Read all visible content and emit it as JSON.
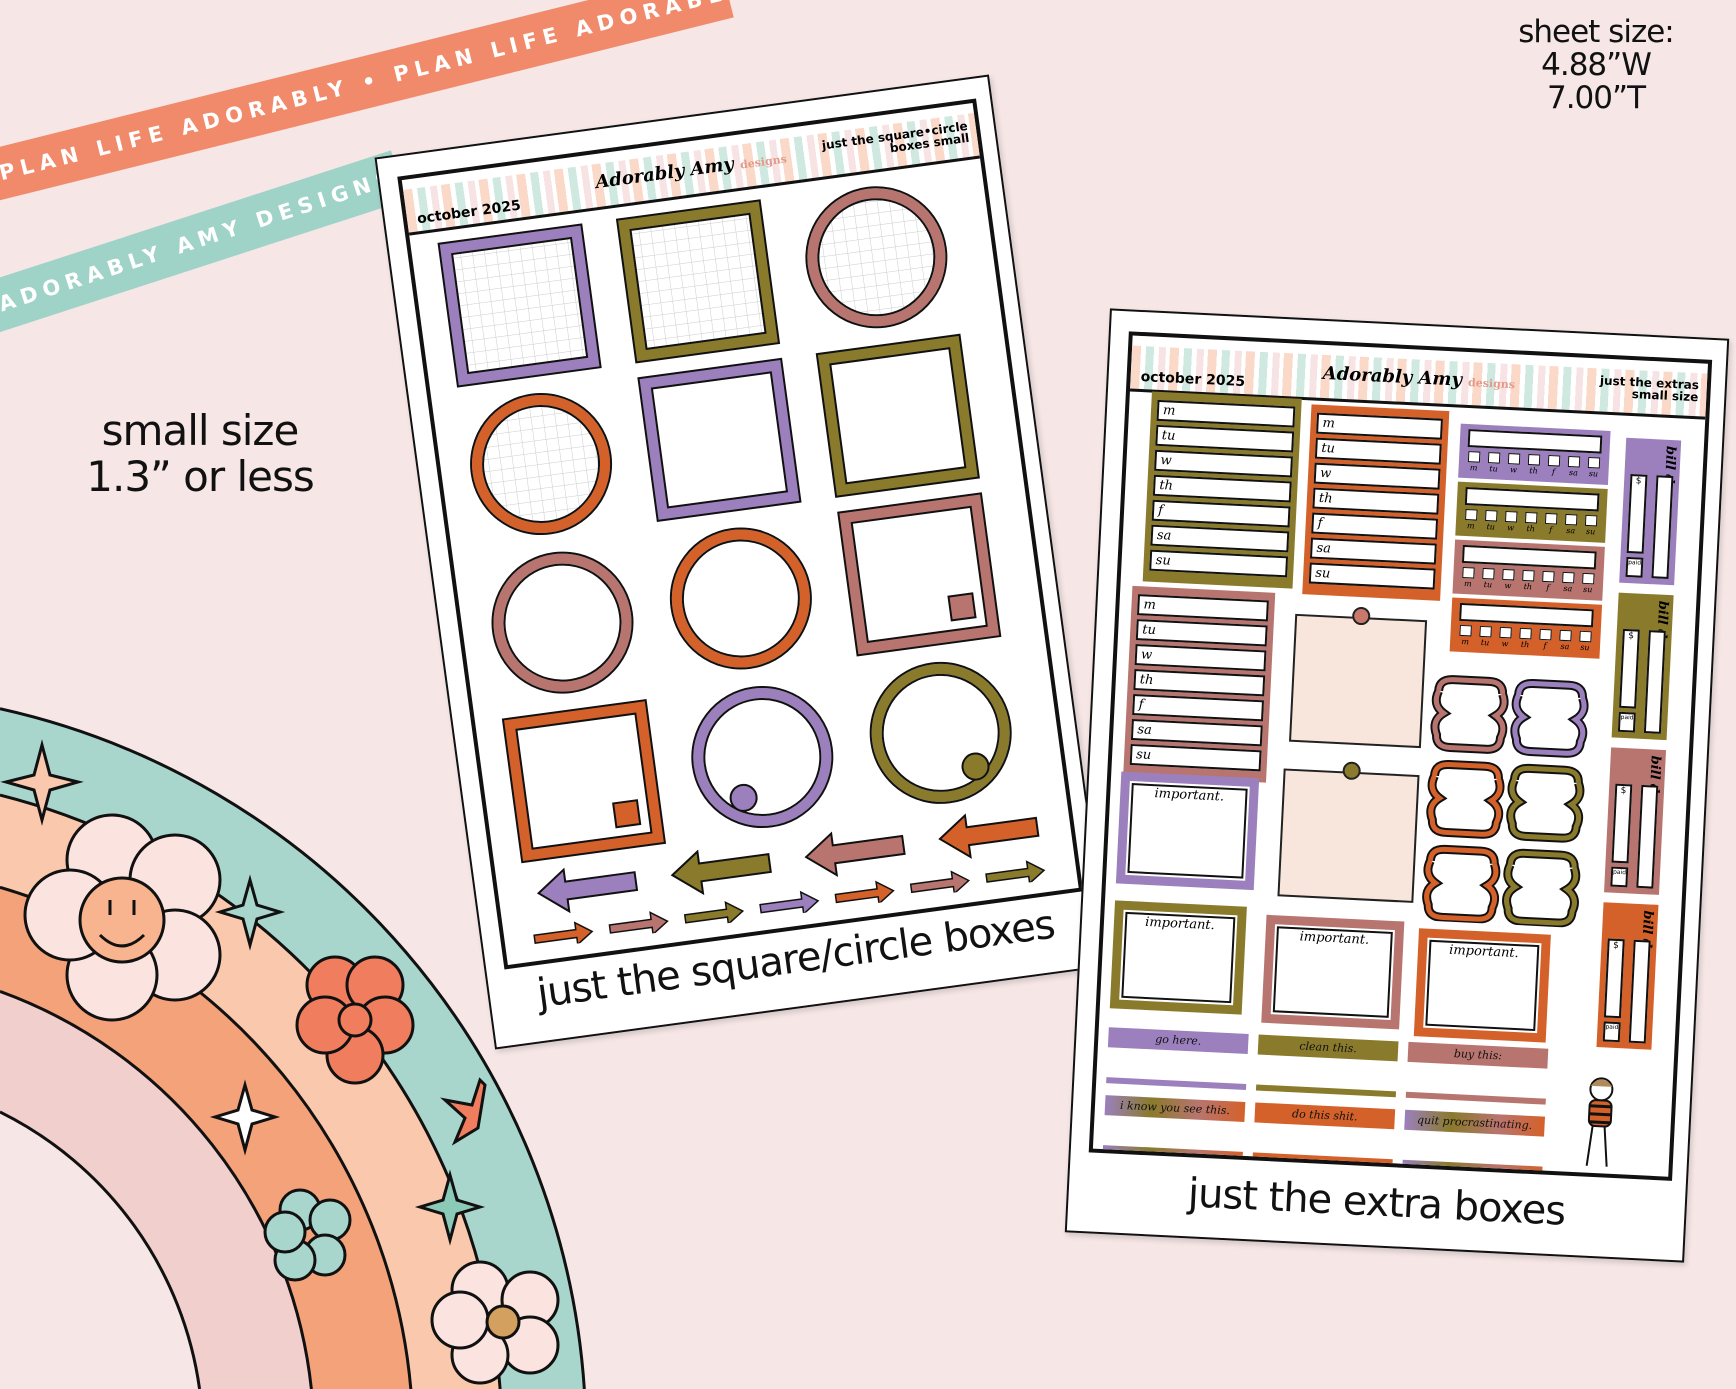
{
  "colors": {
    "background": "#f6e6e6",
    "purple": "#9b80bd",
    "olive": "#8a7a2c",
    "rose": "#b8756f",
    "orange": "#d4612a",
    "teal": "#9fd3c7",
    "peach": "#f7b48f",
    "coral": "#f08a6a"
  },
  "ribbons": {
    "top": "PLAN LIFE ADORABLY • PLAN LIFE ADORABLY • PLAN LIFE ADORABLY •",
    "bottom": "ADORABLY AMY DESIGNS• ADORABLY AMY DESIGNS• ADORABLY AMY DESIGNS•"
  },
  "size_note": {
    "line1": "small size",
    "line2": "1.3” or less"
  },
  "sheet_size": {
    "line1": "sheet size:",
    "line2": "4.88”W",
    "line3": "7.00”T"
  },
  "brand": {
    "logo": "Adorably Amy",
    "logo_sub": "designs"
  },
  "left_sheet": {
    "month": "october 2025",
    "kind_line1": "just the square•circle",
    "kind_line2": "boxes small",
    "caption": "just the square/circle boxes",
    "items": [
      {
        "shape": "square",
        "color": "purple",
        "grid": true
      },
      {
        "shape": "square",
        "color": "olive",
        "grid": true
      },
      {
        "shape": "circle",
        "color": "rose",
        "grid": true
      },
      {
        "shape": "circle",
        "color": "orange",
        "grid": true
      },
      {
        "shape": "square",
        "color": "purple"
      },
      {
        "shape": "square",
        "color": "olive"
      },
      {
        "shape": "circle",
        "color": "rose"
      },
      {
        "shape": "circle",
        "color": "orange"
      },
      {
        "shape": "square",
        "color": "rose",
        "marker": true
      },
      {
        "shape": "square",
        "color": "orange",
        "marker": true
      },
      {
        "shape": "circle",
        "color": "purple",
        "marker": true
      },
      {
        "shape": "circle",
        "color": "olive",
        "marker": true
      }
    ],
    "big_arrows": [
      "purple",
      "olive",
      "rose",
      "orange"
    ],
    "small_arrows": [
      "orange",
      "rose",
      "olive",
      "purple",
      "orange",
      "rose",
      "olive"
    ]
  },
  "right_sheet": {
    "month": "october 2025",
    "kind_line1": "just the extras",
    "kind_line2": "small size",
    "caption": "just the extra boxes",
    "weekdays": [
      "m",
      "tu",
      "w",
      "th",
      "f",
      "sa",
      "su"
    ],
    "week_boxes": [
      "olive",
      "orange",
      "rose"
    ],
    "trackers": [
      "purple",
      "olive",
      "rose",
      "orange"
    ],
    "bill": {
      "label": "bill due",
      "currency": "$",
      "paid": "paid",
      "colors": [
        "purple",
        "olive",
        "rose",
        "orange"
      ]
    },
    "important": {
      "label": "important.",
      "colors": [
        "purple",
        "olive",
        "rose",
        "orange"
      ]
    },
    "labels": [
      {
        "text": "go here.",
        "color": "purple"
      },
      {
        "text": "clean this.",
        "color": "olive"
      },
      {
        "text": "buy this:",
        "color": "rose"
      },
      {
        "text": "i know you see this.",
        "color": "gradient"
      },
      {
        "text": "do this shit.",
        "color": "orange"
      },
      {
        "text": "quit procrastinating.",
        "color": "gradient"
      }
    ]
  }
}
